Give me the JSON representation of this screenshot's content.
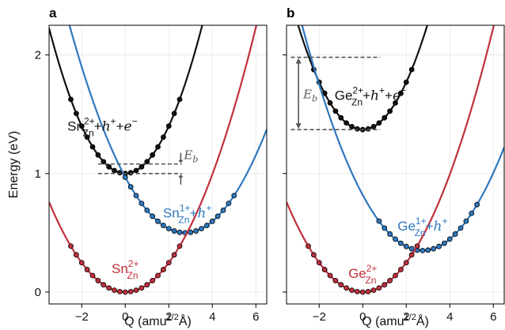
{
  "colors": {
    "black": "#111111",
    "blue": "#2f78be",
    "red": "#c0303c",
    "marker_edge": "#000000",
    "dash": "#555555"
  },
  "chart_data": [
    {
      "type": "line",
      "panel_label": "a",
      "xlabel": "Q (amu",
      "xlabel_sup": "1/2",
      "xlabel_end": "Å)",
      "ylabel": "Energy (eV)",
      "xlim": [
        -3.5,
        6.5
      ],
      "ylim": [
        -0.1,
        2.25
      ],
      "xticks": [
        -2,
        0,
        2,
        4,
        6
      ],
      "xtick_labels": [
        "−2",
        "0",
        "2",
        "4",
        "6"
      ],
      "yticks": [
        0,
        1,
        2
      ],
      "ytick_labels": [
        "0",
        "1",
        "2"
      ],
      "grid": true,
      "series": [
        {
          "name": "Sn",
          "sup": "2+",
          "sub": "Zn",
          "suffix_parts": [
            "+",
            "h",
            "+",
            "+",
            "e",
            "−"
          ],
          "color_key": "black",
          "E0": 1.0,
          "Q0": 0.0,
          "k": 0.1,
          "dots_from": -2.5,
          "dots_to": 2.5,
          "dots_step": 0.25
        },
        {
          "name": "Sn",
          "sup": "1+",
          "sub": "Zn",
          "suffix_parts": [
            "+",
            "h",
            "+"
          ],
          "color_key": "blue",
          "E0": 0.5,
          "Q0": 2.75,
          "k": 0.062,
          "dots_from": 0.0,
          "dots_to": 5.0,
          "dots_step": 0.25
        },
        {
          "name": "Sn",
          "sup": "2+",
          "sub": "Zn",
          "suffix_parts": [],
          "color_key": "red",
          "E0": 0.0,
          "Q0": 0.0,
          "k": 0.062,
          "dots_from": -2.5,
          "dots_to": 2.5,
          "dots_step": 0.25
        }
      ],
      "annotation": {
        "label": "E",
        "label_sub": "b",
        "upper": 1.08,
        "lower": 1.0
      }
    },
    {
      "type": "line",
      "panel_label": "b",
      "xlabel": "Q (amu",
      "xlabel_sup": "1/2",
      "xlabel_end": "Å)",
      "ylabel": "",
      "xlim": [
        -3.5,
        6.5
      ],
      "ylim": [
        -0.1,
        2.25
      ],
      "xticks": [
        -2,
        0,
        2,
        4,
        6
      ],
      "xtick_labels": [
        "−2",
        "0",
        "2",
        "4",
        "6"
      ],
      "yticks": [
        0,
        1,
        2
      ],
      "ytick_labels": [],
      "grid": true,
      "series": [
        {
          "name": "Ge",
          "sup": "2+",
          "sub": "Zn",
          "suffix_parts": [
            "+",
            "h",
            "+",
            "+",
            "e",
            "−"
          ],
          "color_key": "black",
          "E0": 1.37,
          "Q0": 0.0,
          "k": 0.1,
          "dots_from": -2.25,
          "dots_to": 2.25,
          "dots_step": 0.25
        },
        {
          "name": "Ge",
          "sup": "1+",
          "sub": "Zn",
          "suffix_parts": [
            "+",
            "h",
            "+"
          ],
          "color_key": "blue",
          "E0": 0.35,
          "Q0": 2.75,
          "k": 0.062,
          "dots_from": 0.75,
          "dots_to": 5.25,
          "dots_step": 0.25
        },
        {
          "name": "Ge",
          "sup": "2+",
          "sub": "Zn",
          "suffix_parts": [],
          "color_key": "red",
          "E0": 0.0,
          "Q0": 0.0,
          "k": 0.062,
          "dots_from": -2.5,
          "dots_to": 2.5,
          "dots_step": 0.25
        }
      ],
      "annotation": {
        "label": "E",
        "label_sub": "b",
        "upper": 1.98,
        "lower": 1.37
      }
    }
  ]
}
